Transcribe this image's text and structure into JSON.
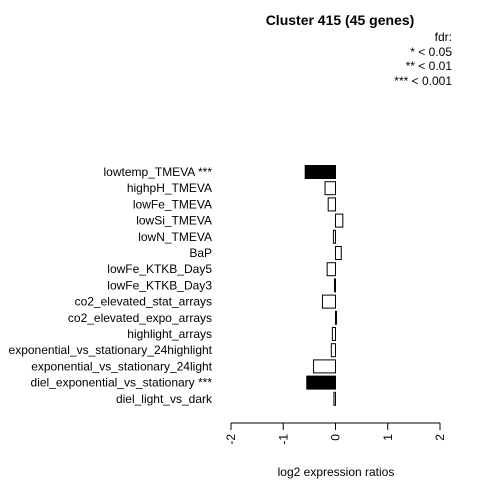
{
  "chart_data": {
    "type": "bar",
    "orientation": "horizontal",
    "title": "Cluster 415 (45 genes)",
    "xlabel": "log2 expression ratios",
    "ylabel": "",
    "xlim": [
      -2,
      2
    ],
    "xticks": [
      "-2",
      "-1",
      "0",
      "1",
      "2"
    ],
    "categories": [
      "lowtemp_TMEVA ***",
      "highpH_TMEVA",
      "lowFe_TMEVA",
      "lowSi_TMEVA",
      "lowN_TMEVA",
      "BaP",
      "lowFe_KTKB_Day5",
      "lowFe_KTKB_Day3",
      "co2_elevated_stat_arrays",
      "co2_elevated_expo_arrays",
      "highlight_arrays",
      "exponential_vs_stationary_24highlight",
      "exponential_vs_stationary_24light",
      "diel_exponential_vs_stationary ***",
      "diel_light_vs_dark"
    ],
    "values": [
      -0.58,
      -0.2,
      -0.14,
      0.14,
      -0.04,
      0.11,
      -0.16,
      -0.02,
      -0.25,
      0.02,
      -0.06,
      -0.08,
      -0.42,
      -0.55,
      -0.03
    ],
    "bar_fill": [
      "#000000",
      "#ffffff",
      "#ffffff",
      "#ffffff",
      "#ffffff",
      "#ffffff",
      "#ffffff",
      "#ffffff",
      "#ffffff",
      "#ffffff",
      "#ffffff",
      "#ffffff",
      "#ffffff",
      "#000000",
      "#ffffff"
    ],
    "legend": {
      "title": "fdr:",
      "entries": [
        "* < 0.05",
        "** < 0.01",
        "*** < 0.001"
      ],
      "placement": "top-right"
    },
    "grid": false
  }
}
